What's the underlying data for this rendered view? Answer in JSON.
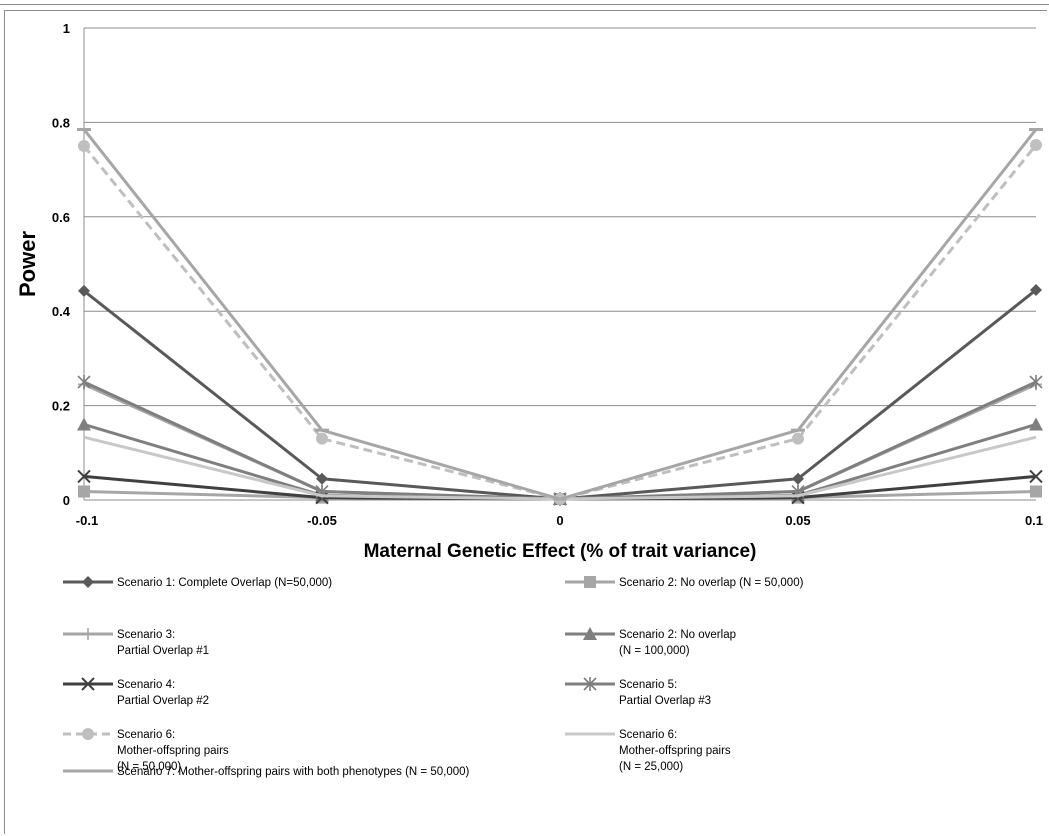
{
  "chart_data": {
    "type": "line",
    "title": "",
    "xlabel": "Maternal Genetic Effect (% of trait variance)",
    "ylabel": "Power",
    "x": [
      -0.1,
      -0.05,
      0,
      0.05,
      0.1
    ],
    "x_tick_labels": [
      "-0.1",
      "-0.05",
      "0",
      "0.05",
      "0.1"
    ],
    "y_tick_labels": [
      "0",
      "0.2",
      "0.4",
      "0.6",
      "0.8",
      "1"
    ],
    "ylim": [
      0,
      1
    ],
    "grid": "horizontal",
    "legend_position": "bottom",
    "series": [
      {
        "name": "Scenario 1: Complete Overlap (N=50,000)",
        "legend_lines": [
          "Scenario 1: Complete Overlap (N=50,000)"
        ],
        "values": [
          0.443,
          0.045,
          0.002,
          0.045,
          0.445
        ],
        "color": "#595959",
        "marker": "diamond",
        "dash": "solid"
      },
      {
        "name": "Scenario 2: No overlap (N = 50,000)",
        "legend_lines": [
          "Scenario 2: No overlap (N = 50,000)"
        ],
        "values": [
          0.018,
          0.005,
          0.002,
          0.005,
          0.018
        ],
        "color": "#a6a6a6",
        "marker": "square",
        "dash": "solid"
      },
      {
        "name": "Scenario 3: Partial Overlap #1",
        "legend_lines": [
          "Scenario 3:",
          "Partial Overlap #1"
        ],
        "values": [
          0.245,
          0.018,
          0.002,
          0.018,
          0.245
        ],
        "color": "#a6a6a6",
        "marker": "plus",
        "dash": "solid"
      },
      {
        "name": "Scenario 2: No overlap (N = 100,000)",
        "legend_lines": [
          "Scenario 2: No overlap",
          "(N = 100,000)"
        ],
        "values": [
          0.16,
          0.01,
          0.002,
          0.01,
          0.16
        ],
        "color": "#7f7f7f",
        "marker": "triangle",
        "dash": "solid"
      },
      {
        "name": "Scenario 4: Partial Overlap #2",
        "legend_lines": [
          "Scenario 4:",
          "Partial Overlap #2"
        ],
        "values": [
          0.05,
          0.005,
          0.002,
          0.005,
          0.05
        ],
        "color": "#404040",
        "marker": "x",
        "dash": "solid"
      },
      {
        "name": "Scenario 5: Partial Overlap #3",
        "legend_lines": [
          "Scenario 5:",
          "Partial Overlap #3"
        ],
        "values": [
          0.25,
          0.018,
          0.002,
          0.018,
          0.25
        ],
        "color": "#7f7f7f",
        "marker": "star",
        "dash": "solid"
      },
      {
        "name": "Scenario 6: Mother-offspring pairs (N = 50,000)",
        "legend_lines": [
          "Scenario 6:",
          "Mother-offspring pairs",
          "(N = 50,000)"
        ],
        "values": [
          0.75,
          0.13,
          0.002,
          0.13,
          0.752
        ],
        "color": "#bfbfbf",
        "marker": "circle",
        "dash": "dashed"
      },
      {
        "name": "Scenario 6: Mother-offspring pairs (N = 25,000)",
        "legend_lines": [
          "Scenario 6:",
          "Mother-offspring pairs",
          "(N = 25,000)"
        ],
        "values": [
          0.133,
          0.009,
          0.002,
          0.009,
          0.133
        ],
        "color": "#c8c8c8",
        "marker": "none",
        "dash": "solid"
      },
      {
        "name": "Scenario 7: Mother-offspring pairs with both phenotypes (N = 50,000)",
        "legend_lines": [
          "Scenario 7: Mother-offspring pairs with both phenotypes (N = 50,000)"
        ],
        "values": [
          0.785,
          0.148,
          0.002,
          0.148,
          0.785
        ],
        "color": "#a6a6a6",
        "marker": "dash",
        "dash": "solid"
      }
    ]
  }
}
